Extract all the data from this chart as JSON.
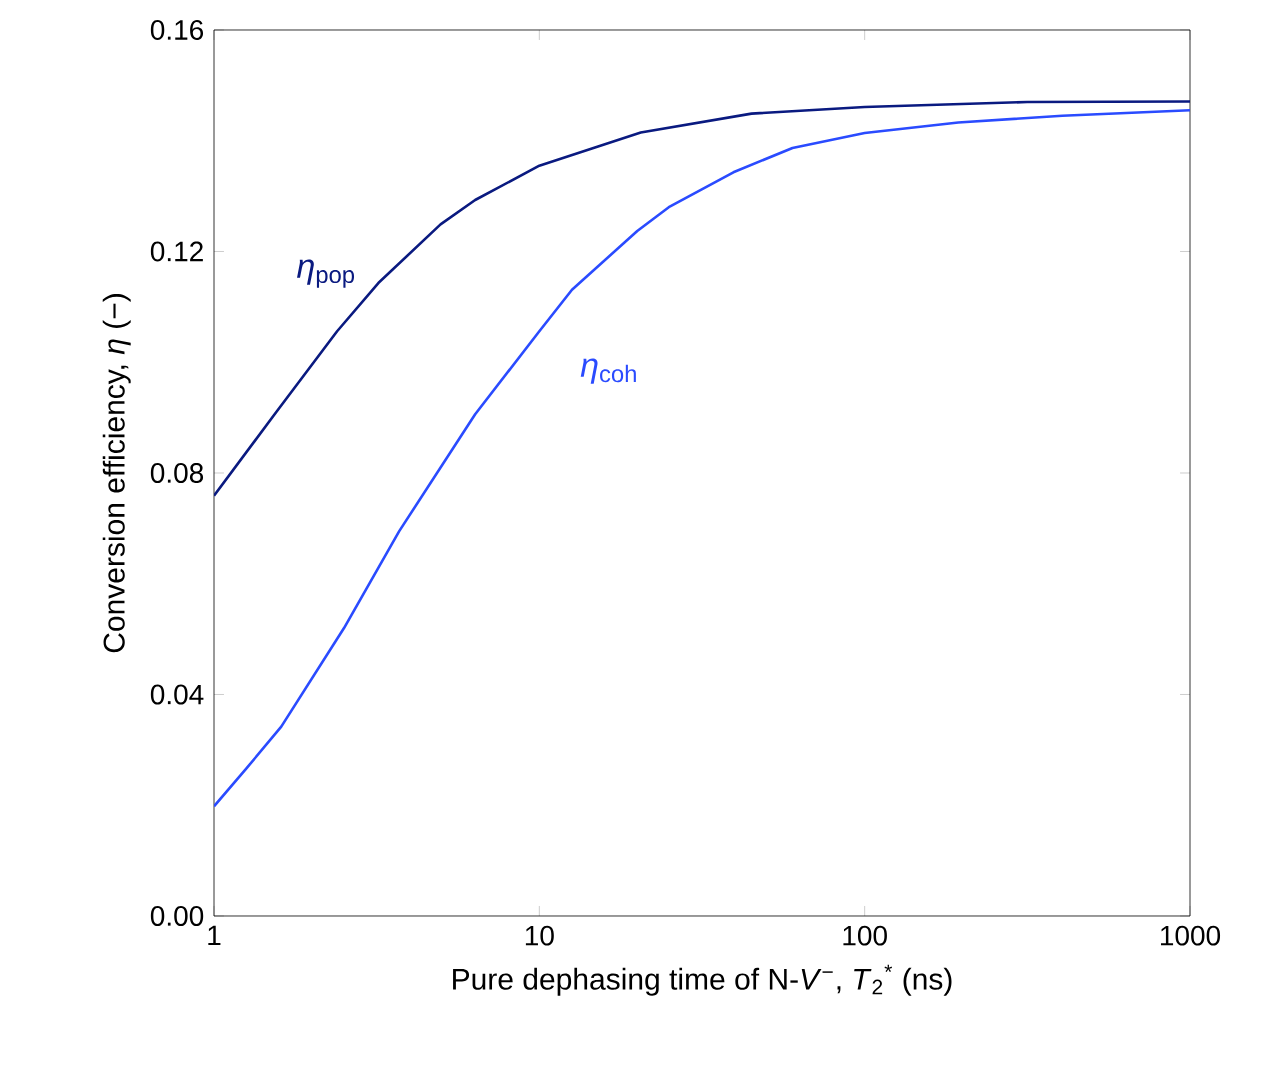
{
  "chart_data": {
    "type": "line",
    "xlabel": "Pure dephasing time of N-*V*$^{−}$, *T*$_{2}$$^{*}$ (ns)",
    "ylabel": "Conversion efficiency, *η* (−)",
    "log": "x",
    "xlim": [
      1,
      1000
    ],
    "ylim": [
      0,
      0.16
    ],
    "xticks": [
      1,
      10,
      100,
      1000
    ],
    "yticks": [
      {
        "value": 0,
        "label": "0.00"
      },
      0.04,
      0.08,
      0.12,
      0.16
    ],
    "series": [
      {
        "name": "*η*$_{pop}$",
        "color": "#0a1a80",
        "x": [
          1,
          1.54,
          2.39,
          3.2,
          4.97,
          6.35,
          10,
          20.5,
          44.9,
          100,
          316,
          1000
        ],
        "values": [
          0.0759,
          0.0907,
          0.1056,
          0.1143,
          0.1249,
          0.1293,
          0.1355,
          0.1415,
          0.1449,
          0.1461,
          0.147,
          0.1471
        ]
      },
      {
        "name": "*η*$_{coh}$",
        "color": "#2a4bff",
        "x": [
          1,
          1.26,
          1.61,
          2.51,
          3.71,
          6.35,
          10,
          12.6,
          20,
          25,
          39.5,
          60,
          100,
          194,
          405,
          1000
        ],
        "values": [
          0.0198,
          0.0267,
          0.0342,
          0.052,
          0.0695,
          0.0906,
          0.1056,
          0.1131,
          0.1237,
          0.128,
          0.1343,
          0.1387,
          0.1414,
          0.1433,
          0.1445,
          0.1455
        ]
      }
    ]
  }
}
